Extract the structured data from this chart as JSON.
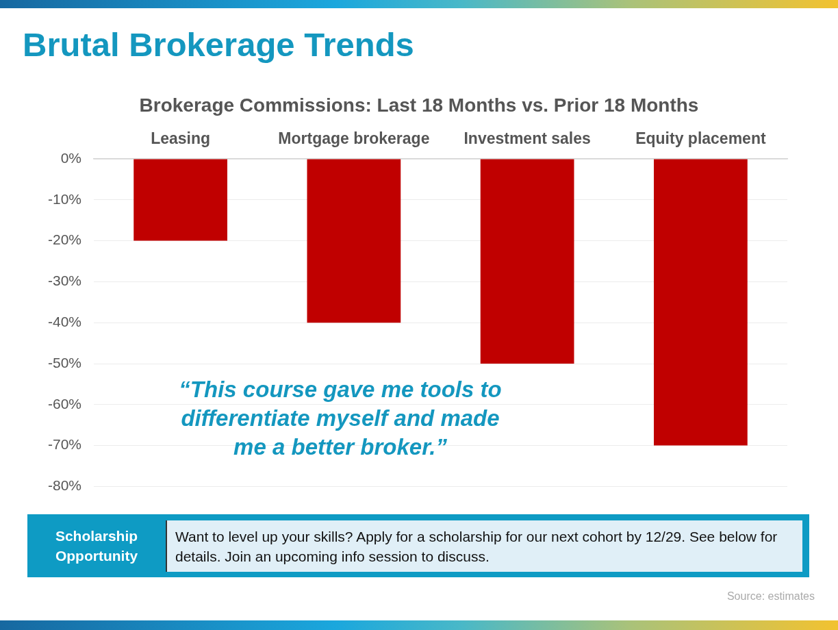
{
  "chart_data": {
    "type": "bar",
    "title": "Brutal Brokerage Trends",
    "subtitle": "Brokerage Commissions: Last 18 Months vs. Prior 18 Months",
    "categories": [
      "Leasing",
      "Mortgage brokerage",
      "Investment sales",
      "Equity placement"
    ],
    "values": [
      -20,
      -40,
      -50,
      -70
    ],
    "color": "#c00000",
    "ylim": [
      -80,
      0
    ],
    "yticks": [
      {
        "value": 0,
        "label": "0%"
      },
      {
        "value": -10,
        "label": "-10%"
      },
      {
        "value": -20,
        "label": "-20%"
      },
      {
        "value": -30,
        "label": "-30%"
      },
      {
        "value": -40,
        "label": "-40%"
      },
      {
        "value": -50,
        "label": "-50%"
      },
      {
        "value": -60,
        "label": "-60%"
      },
      {
        "value": -70,
        "label": "-70%"
      },
      {
        "value": -80,
        "label": "-80%"
      }
    ],
    "grid": "y",
    "annotations": [
      "“This course gave me tools to differentiate myself and made me a better broker.”",
      "Scholarship Opportunity",
      "Want to level up your skills? Apply for a scholarship for our next cohort by 12/29. See below for details. Join an upcoming info session to discuss.",
      "Source: estimates"
    ]
  }
}
